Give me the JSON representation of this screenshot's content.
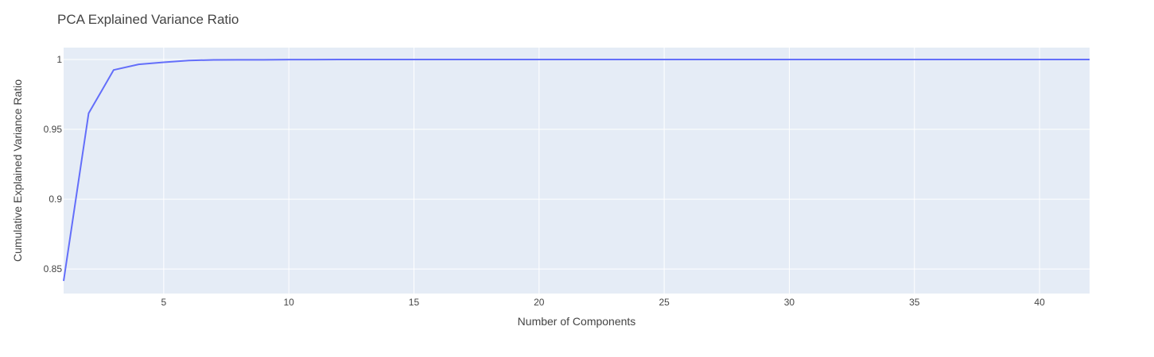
{
  "chart_data": {
    "type": "line",
    "title": "PCA Explained Variance Ratio",
    "xlabel": "Number of Components",
    "ylabel": "Cumulative Explained Variance Ratio",
    "xlim": [
      1,
      42
    ],
    "ylim": [
      0.8325,
      1.0085
    ],
    "xticks": [
      5,
      10,
      15,
      20,
      25,
      30,
      35,
      40
    ],
    "xtick_labels": [
      "5",
      "10",
      "15",
      "20",
      "25",
      "30",
      "35",
      "40"
    ],
    "yticks": [
      0.85,
      0.9,
      0.95,
      1
    ],
    "ytick_labels": [
      "0.85",
      "0.9",
      "0.95",
      "1"
    ],
    "grid": true,
    "legend": "none",
    "colors": {
      "plot_background": "#e5ecf6",
      "grid": "#ffffff",
      "line": "#636efa"
    },
    "series": [
      {
        "x": [
          1,
          2,
          3,
          4,
          5,
          6,
          7,
          8,
          9,
          10,
          11,
          12,
          13,
          14,
          15,
          16,
          17,
          18,
          19,
          20,
          21,
          22,
          23,
          24,
          25,
          26,
          27,
          28,
          29,
          30,
          31,
          32,
          33,
          34,
          35,
          36,
          37,
          38,
          39,
          40,
          41,
          42
        ],
        "values": [
          0.8415,
          0.9615,
          0.9925,
          0.9965,
          0.998,
          0.9993,
          0.9997,
          0.9998,
          0.9998,
          0.9999,
          0.9999,
          1,
          1,
          1,
          1,
          1,
          1,
          1,
          1,
          1,
          1,
          1,
          1,
          1,
          1,
          1,
          1,
          1,
          1,
          1,
          1,
          1,
          1,
          1,
          1,
          1,
          1,
          1,
          1,
          1,
          1,
          1
        ]
      }
    ]
  }
}
